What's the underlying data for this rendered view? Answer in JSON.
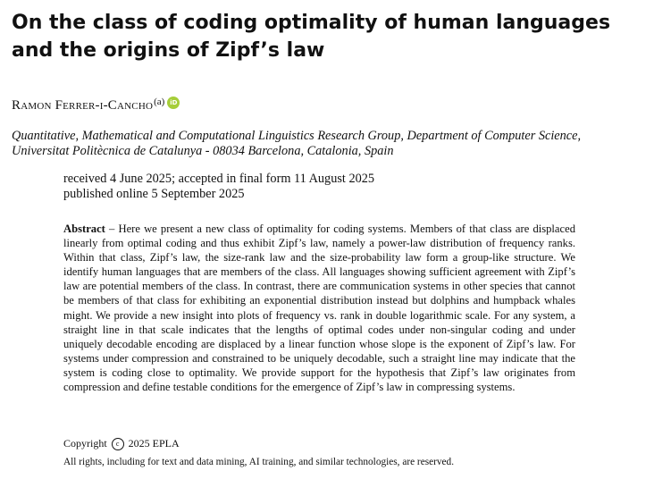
{
  "title": "On the class of coding optimality of human languages and the origins of Zipf’s law",
  "author": {
    "name": "Ramon Ferrer-i-Cancho",
    "affiliation_mark": "(a)",
    "orcid_label": "iD"
  },
  "affiliation": {
    "line1": "Quantitative, Mathematical and Computational Linguistics Research Group, Department of Computer Science,",
    "line2": "Universitat Politècnica de Catalunya - 08034 Barcelona, Catalonia, Spain"
  },
  "dates": {
    "line1": "received 4 June 2025; accepted in final form 11 August 2025",
    "line2": "published online 5 September 2025"
  },
  "abstract": {
    "label": "Abstract",
    "text": "– Here we present a new class of optimality for coding systems.  Members of that class are displaced linearly from optimal coding and thus exhibit Zipf’s law, namely a power-law distribution of frequency ranks.  Within that class, Zipf’s law, the size-rank law and the size-probability law form a group-like structure.  We identify human languages that are members of the class. All languages showing sufficient agreement with Zipf’s law are potential members of the class.  In contrast, there are communication systems in other species that cannot be members of that class for exhibiting an exponential distribution instead but dolphins and humpback whales might.  We provide a new insight into plots of frequency vs. rank in double logarithmic scale.  For any system, a straight line in that scale indicates that the lengths of optimal codes under non-singular coding and under uniquely decodable encoding are displaced by a linear function whose slope is the exponent of Zipf’s law.  For systems under compression and constrained to be uniquely decodable, such a straight line may indicate that the system is coding close to optimality.  We provide support for the hypothesis that Zipf’s law originates from compression and define testable conditions for the emergence of Zipf’s law in compressing systems."
  },
  "copyright": {
    "prefix": "Copyright",
    "symbol": "c",
    "suffix": "2025 EPLA"
  },
  "rights": "All rights, including for text and data mining, AI training, and similar technologies, are reserved."
}
